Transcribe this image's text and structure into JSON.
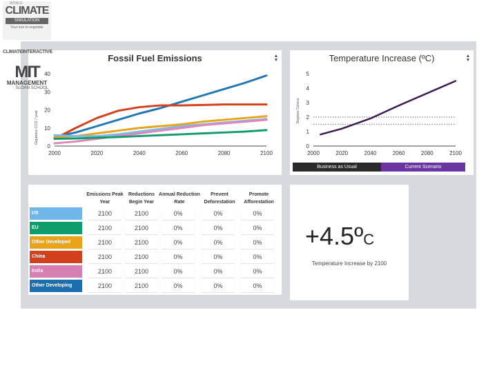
{
  "emissions": {
    "title": "Fossil Fuel Emissions",
    "chart_data": {
      "type": "line",
      "title": "Fossil Fuel Emissions",
      "ylabel": "Gigatons CO2 / year",
      "xlabel": "",
      "x": [
        2000,
        2010,
        2020,
        2030,
        2040,
        2050,
        2060,
        2070,
        2080,
        2090,
        2100
      ],
      "xticks": [
        "2000",
        "2020",
        "2040",
        "2060",
        "2080",
        "2100"
      ],
      "yticks": [
        "0",
        "10",
        "20",
        "30",
        "40"
      ],
      "xlim": [
        2000,
        2100
      ],
      "ylim": [
        0,
        40
      ],
      "series": [
        {
          "name": "Other Developing",
          "color": "#1f77b4",
          "values": [
            5,
            7.5,
            11,
            14.5,
            18,
            21,
            24.5,
            28,
            31.5,
            35,
            39
          ]
        },
        {
          "name": "China",
          "color": "#d2401c",
          "values": [
            4,
            10,
            15.5,
            19.5,
            21.5,
            22.5,
            22.5,
            22.7,
            23,
            23,
            23
          ]
        },
        {
          "name": "Other Developed",
          "color": "#e8a317",
          "values": [
            5,
            5.5,
            7,
            8.5,
            10,
            11,
            12,
            13.5,
            14.5,
            15.5,
            16.5
          ]
        },
        {
          "name": "US",
          "color": "#7fb9e6",
          "values": [
            6,
            5.5,
            5.5,
            6.5,
            8,
            9.5,
            11,
            12,
            13,
            14,
            15
          ]
        },
        {
          "name": "India",
          "color": "#e086b8",
          "values": [
            1.5,
            2.5,
            4,
            5.5,
            7,
            8.5,
            10,
            11.5,
            12.5,
            13.5,
            14.5
          ]
        },
        {
          "name": "EU",
          "color": "#139b6b",
          "values": [
            4,
            4.2,
            4.6,
            5,
            5.5,
            6,
            6.5,
            7,
            7.5,
            8,
            8.8
          ]
        }
      ]
    }
  },
  "temperature": {
    "title": "Temperature Increase (ºC)",
    "chart_data": {
      "type": "line",
      "title": "Temperature Increase (ºC)",
      "ylabel": "Degrees Celsius",
      "xticks": [
        "2000",
        "2020",
        "2040",
        "2060",
        "2080",
        "2100"
      ],
      "yticks": [
        "0",
        "1",
        "2",
        "3",
        "4",
        "5"
      ],
      "xlim": [
        2000,
        2100
      ],
      "ylim": [
        0,
        5
      ],
      "reference_lines": [
        1.5,
        2
      ],
      "series": [
        {
          "name": "Current Scenario",
          "color": "#3a1a4f",
          "x": [
            2005,
            2020,
            2040,
            2060,
            2080,
            2100
          ],
          "values": [
            0.8,
            1.2,
            1.9,
            2.8,
            3.65,
            4.5
          ]
        }
      ]
    },
    "legend": {
      "business": "Business as Usual",
      "current": "Current Scenario"
    }
  },
  "table": {
    "headers": [
      "Emissions Peak Year",
      "Reductions Begin Year",
      "Annual Reduction Rate",
      "Prevent Deforestation",
      "Promote Afforestation"
    ],
    "rows": [
      {
        "label": "US",
        "color": "#6fb6ea",
        "values": [
          "2100",
          "2100",
          "0%",
          "0%",
          "0%"
        ]
      },
      {
        "label": "EU",
        "color": "#0e9e6b",
        "values": [
          "2100",
          "2100",
          "0%",
          "0%",
          "0%"
        ]
      },
      {
        "label": "Other Developed",
        "color": "#e8a317",
        "values": [
          "2100",
          "2100",
          "0%",
          "0%",
          "0%"
        ]
      },
      {
        "label": "China",
        "color": "#d2401c",
        "values": [
          "2100",
          "2100",
          "0%",
          "0%",
          "0%"
        ]
      },
      {
        "label": "India",
        "color": "#d67fb2",
        "values": [
          "2100",
          "2100",
          "0%",
          "0%",
          "0%"
        ]
      },
      {
        "label": "Other Developing",
        "color": "#1b6fae",
        "values": [
          "2100",
          "2100",
          "0%",
          "0%",
          "0%"
        ]
      }
    ]
  },
  "result": {
    "value": "+4.5º",
    "unit": "C",
    "caption": "Temperature Increase by 2100"
  },
  "logos": {
    "wcs_top": "WORLD",
    "wcs_main": "CLIMATE",
    "wcs_band": "SIMULATION",
    "wcs_tag": "Your turn to negotiate",
    "ci": "CLIMATEINTERACTIVE",
    "mit": "MIT",
    "mit_sub1": "MANAGEMENT",
    "mit_sub2": "SLOAN SCHOOL"
  }
}
